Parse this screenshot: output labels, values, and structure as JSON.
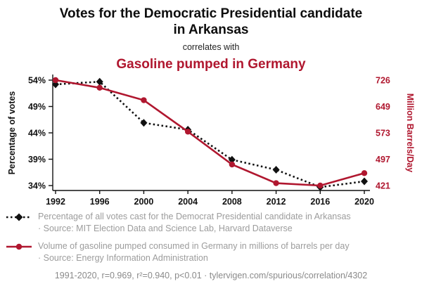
{
  "header": {
    "title": "Votes for the Democratic Presidential candidate in Arkansas",
    "connector": "correlates with",
    "subtitle": "Gasoline pumped in Germany"
  },
  "legend": {
    "entries": [
      {
        "label": "Percentage of all votes cast for the Democrat Presidential candidate in Arkansas",
        "source_line": "· Source: MIT Election Data and Science Lab, Harvard Dataverse"
      },
      {
        "label": "Volume of gasoline pumped consumed in Germany in millions of barrels per day",
        "source_line": "· Source: Energy Information Administration"
      }
    ]
  },
  "footer": {
    "text": "1991-2020, r=0.969, r²=0.940, p<0.01 · tylervigen.com/spurious/correlation/4302"
  },
  "colors": {
    "accent_red": "#b0172f",
    "series_black": "#111111",
    "muted_gray": "#9c9c9c"
  },
  "chart_data": {
    "type": "line",
    "title": "Votes for the Democratic Presidential candidate in Arkansas correlates with Gasoline pumped in Germany",
    "x": [
      1992,
      1996,
      2000,
      2004,
      2008,
      2012,
      2016,
      2020
    ],
    "x_ticks": [
      1992,
      1996,
      2000,
      2004,
      2008,
      2012,
      2016,
      2020
    ],
    "series": [
      {
        "name": "Percentage of all votes cast for the Democrat Presidential candidate in Arkansas",
        "axis": "left",
        "color": "#111111",
        "style": "dashed",
        "marker": "diamond",
        "values": [
          53.2,
          53.7,
          45.9,
          44.6,
          38.9,
          37.0,
          33.7,
          34.8
        ]
      },
      {
        "name": "Volume of gasoline pumped consumed in Germany in millions of barrels per day",
        "axis": "right",
        "color": "#b0172f",
        "style": "solid",
        "marker": "circle",
        "values": [
          726,
          704,
          668,
          577,
          482,
          428,
          421,
          457
        ]
      }
    ],
    "left_axis": {
      "label": "Percentage of votes",
      "ticks": [
        34,
        39,
        44,
        49,
        54
      ],
      "tick_suffix": "%",
      "range": [
        34,
        54
      ]
    },
    "right_axis": {
      "label": "Million Barrels/Day",
      "ticks": [
        421,
        497,
        573,
        649,
        726
      ],
      "range": [
        421,
        726
      ]
    },
    "grid": false,
    "legend_position": "bottom"
  }
}
